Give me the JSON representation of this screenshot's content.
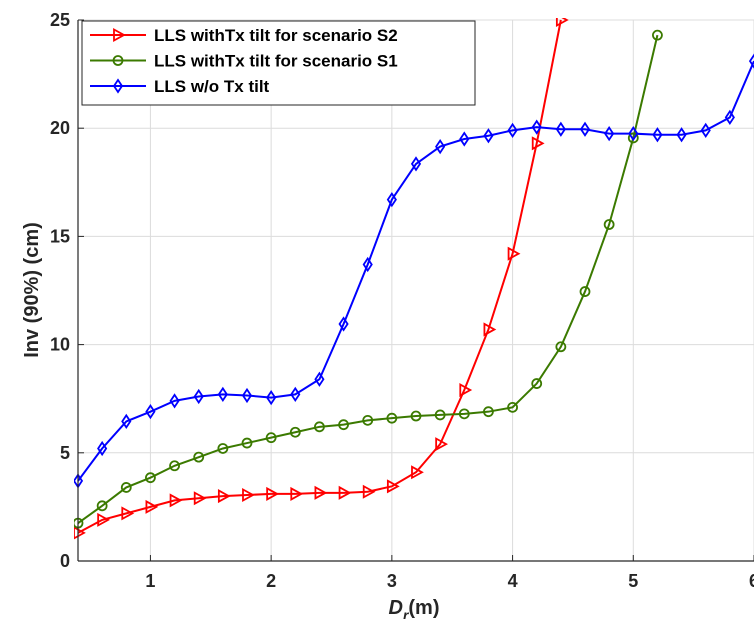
{
  "chart_data": {
    "type": "line",
    "xlabel": "D_r(m)",
    "xlabel_main": "D",
    "xlabel_sub": "r",
    "xlabel_unit": "(m)",
    "ylabel": "Inv (90%) (cm)",
    "xlim": [
      0.4,
      6
    ],
    "ylim": [
      0,
      25
    ],
    "x_ticks": [
      1,
      2,
      3,
      4,
      5,
      6
    ],
    "y_ticks": [
      0,
      5,
      10,
      15,
      20,
      25
    ],
    "x_tick_labels": [
      "1",
      "2",
      "3",
      "4",
      "5",
      "6"
    ],
    "y_tick_labels": [
      "0",
      "5",
      "10",
      "15",
      "20",
      "25"
    ],
    "grid": true,
    "legend_position": "top-left",
    "series": [
      {
        "name": "LLS withTx tilt for scenario S2",
        "color": "#ff0000",
        "marker": "triangle-right",
        "x": [
          0.4,
          0.6,
          0.8,
          1.0,
          1.2,
          1.4,
          1.6,
          1.8,
          2.0,
          2.2,
          2.4,
          2.6,
          2.8,
          3.0,
          3.2,
          3.4,
          3.6,
          3.8,
          4.0,
          4.2,
          4.4
        ],
        "y": [
          1.3,
          1.9,
          2.2,
          2.5,
          2.8,
          2.9,
          3.0,
          3.05,
          3.1,
          3.1,
          3.15,
          3.15,
          3.2,
          3.45,
          4.1,
          5.4,
          7.9,
          10.7,
          14.2,
          19.3,
          25.0
        ]
      },
      {
        "name": "LLS withTx tilt for scenario S1",
        "color": "#3b7a00",
        "marker": "circle",
        "x": [
          0.4,
          0.6,
          0.8,
          1.0,
          1.2,
          1.4,
          1.6,
          1.8,
          2.0,
          2.2,
          2.4,
          2.6,
          2.8,
          3.0,
          3.2,
          3.4,
          3.6,
          3.8,
          4.0,
          4.2,
          4.4,
          4.6,
          4.8,
          5.0,
          5.2
        ],
        "y": [
          1.75,
          2.55,
          3.4,
          3.85,
          4.4,
          4.8,
          5.2,
          5.45,
          5.7,
          5.95,
          6.2,
          6.3,
          6.5,
          6.6,
          6.7,
          6.75,
          6.8,
          6.9,
          7.1,
          8.2,
          9.9,
          12.45,
          15.55,
          19.55,
          24.3
        ]
      },
      {
        "name": "LLS w/o Tx tilt",
        "color": "#0000ff",
        "marker": "diamond",
        "x": [
          0.4,
          0.6,
          0.8,
          1.0,
          1.2,
          1.4,
          1.6,
          1.8,
          2.0,
          2.2,
          2.4,
          2.6,
          2.8,
          3.0,
          3.2,
          3.4,
          3.6,
          3.8,
          4.0,
          4.2,
          4.4,
          4.6,
          4.8,
          5.0,
          5.2,
          5.4,
          5.6,
          5.8,
          6.0
        ],
        "y": [
          3.7,
          5.2,
          6.45,
          6.9,
          7.4,
          7.6,
          7.7,
          7.65,
          7.55,
          7.7,
          8.4,
          10.95,
          13.7,
          16.7,
          18.35,
          19.15,
          19.5,
          19.65,
          19.9,
          20.05,
          19.95,
          19.95,
          19.75,
          19.75,
          19.7,
          19.7,
          19.9,
          20.5,
          23.1
        ]
      }
    ]
  }
}
